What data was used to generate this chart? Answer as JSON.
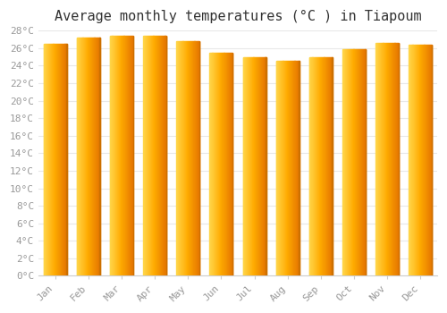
{
  "title": "Average monthly temperatures (°C ) in Tiapoum",
  "months": [
    "Jan",
    "Feb",
    "Mar",
    "Apr",
    "May",
    "Jun",
    "Jul",
    "Aug",
    "Sep",
    "Oct",
    "Nov",
    "Dec"
  ],
  "temperatures": [
    26.5,
    27.2,
    27.4,
    27.4,
    26.8,
    25.5,
    25.0,
    24.6,
    25.0,
    25.9,
    26.6,
    26.4
  ],
  "bar_color_left": "#FFD84D",
  "bar_color_center": "#FFAB00",
  "bar_color_right": "#E87800",
  "bar_edge_color": "#CC7000",
  "ylim": [
    0,
    28
  ],
  "ytick_step": 2,
  "background_color": "#ffffff",
  "grid_color": "#e8e8e8",
  "title_fontsize": 11,
  "tick_fontsize": 8,
  "tick_font_color": "#999999"
}
